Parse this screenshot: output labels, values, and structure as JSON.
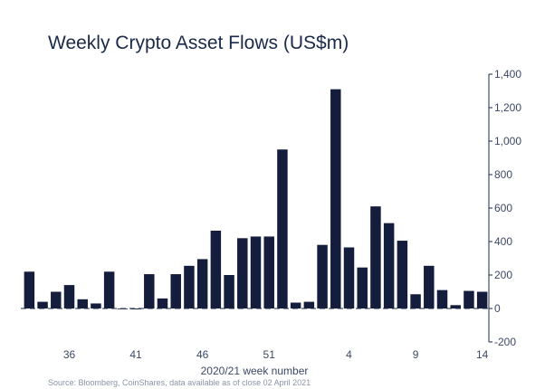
{
  "chart_data": {
    "type": "bar",
    "title": "Weekly Crypto Asset Flows (US$m)",
    "xlabel": "2020/21 week number",
    "ylabel": "",
    "source": "Source: Bloomberg, CoinShares, data available as of close 02 April 2021",
    "ylim": [
      -200,
      1400
    ],
    "y_ticks": [
      -200,
      0,
      200,
      400,
      600,
      800,
      1000,
      1200,
      1400
    ],
    "y_tick_labels": [
      "-200",
      "0",
      "200",
      "400",
      "600",
      "800",
      "1,000",
      "1,200",
      "1,400"
    ],
    "y_axis_position": "right",
    "grid": false,
    "categories": [
      "33",
      "34",
      "35",
      "36",
      "37",
      "38",
      "39",
      "40",
      "41",
      "42",
      "43",
      "44",
      "45",
      "46",
      "47",
      "48",
      "49",
      "50",
      "51",
      "52",
      "53",
      "1",
      "2",
      "3",
      "4",
      "5",
      "6",
      "7",
      "8",
      "9",
      "10",
      "11",
      "12",
      "13",
      "14"
    ],
    "x_tick_labels": [
      "36",
      "41",
      "46",
      "51",
      "4",
      "9",
      "14"
    ],
    "values": [
      220,
      40,
      100,
      140,
      55,
      30,
      220,
      0,
      -5,
      205,
      60,
      205,
      255,
      295,
      465,
      200,
      420,
      430,
      430,
      950,
      35,
      40,
      380,
      1310,
      365,
      245,
      610,
      510,
      405,
      85,
      255,
      110,
      20,
      105,
      100
    ],
    "colors": {
      "bar": "#151d3d",
      "title": "#1b2a4a",
      "text": "#3b4866",
      "source": "#8a93a6"
    }
  }
}
